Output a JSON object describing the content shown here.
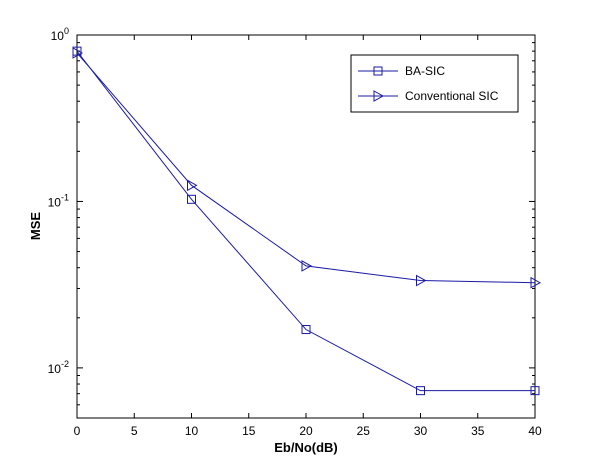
{
  "chart_data": {
    "type": "line",
    "title": "",
    "xlabel": "Eb/No(dB)",
    "ylabel": "MSE",
    "xlim": [
      0,
      40
    ],
    "ylim": [
      0.005,
      1
    ],
    "yscale": "log",
    "grid": false,
    "legend_position": "top-right",
    "x": [
      0,
      10,
      20,
      30,
      40
    ],
    "x_ticks": [
      0,
      5,
      10,
      15,
      20,
      25,
      30,
      35,
      40
    ],
    "x_tick_labels": [
      "0",
      "5",
      "10",
      "15",
      "20",
      "25",
      "30",
      "35",
      "40"
    ],
    "y_ticks": [
      {
        "value": 1,
        "base": "10",
        "exp": "0"
      },
      {
        "value": 0.1,
        "base": "10",
        "exp": "-1"
      },
      {
        "value": 0.01,
        "base": "10",
        "exp": "-2"
      }
    ],
    "series": [
      {
        "name": "BA-SIC",
        "marker": "square",
        "color": "#1a1aa6",
        "values": [
          0.8,
          0.103,
          0.017,
          0.0073,
          0.0073
        ]
      },
      {
        "name": "Conventional SIC",
        "marker": "triangle-right",
        "color": "#1a1aa6",
        "values": [
          0.78,
          0.125,
          0.041,
          0.0335,
          0.0325
        ]
      }
    ]
  }
}
